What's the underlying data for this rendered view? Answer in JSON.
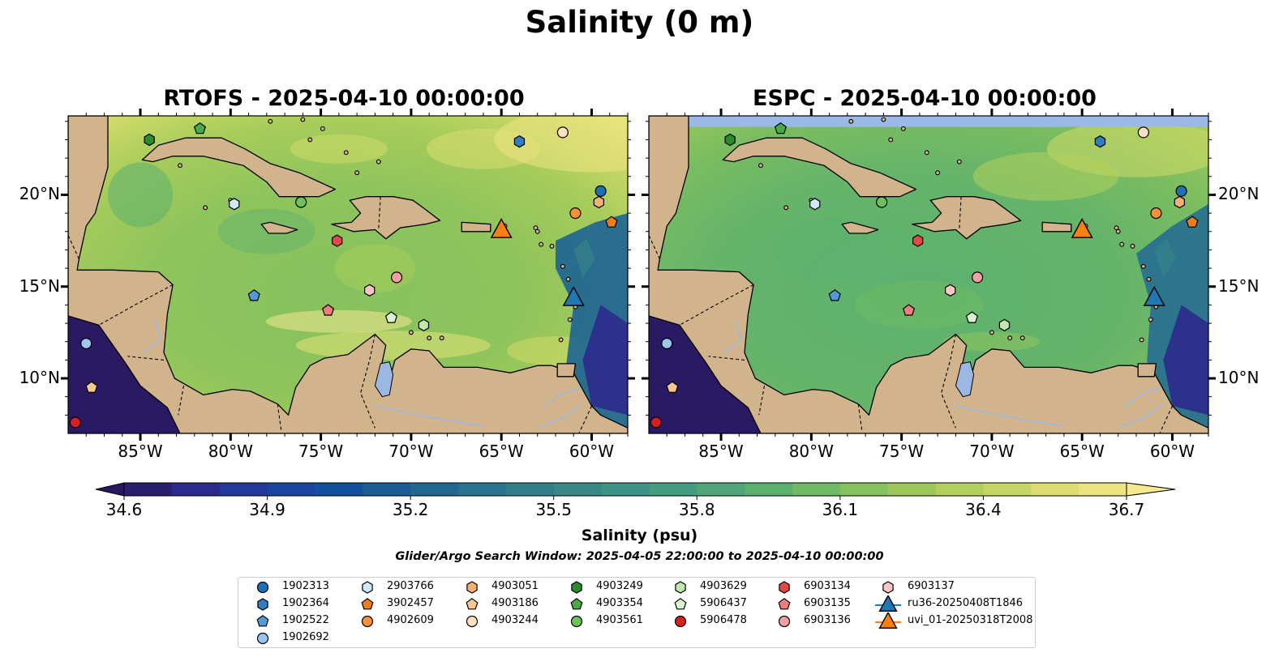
{
  "title": "Salinity (0 m)",
  "panels": [
    {
      "id": "rtofs",
      "title": "RTOFS - 2025-04-10 00:00:00",
      "ocean_style": "rtofs"
    },
    {
      "id": "espc",
      "title": "ESPC - 2025-04-10 00:00:00",
      "ocean_style": "espc"
    }
  ],
  "map_extent": {
    "lon_min": -89,
    "lon_max": -58,
    "lat_min": 7,
    "lat_max": 24.3
  },
  "lon_ticks": [
    {
      "value": -85,
      "label": "85°W"
    },
    {
      "value": -80,
      "label": "80°W"
    },
    {
      "value": -75,
      "label": "75°W"
    },
    {
      "value": -70,
      "label": "70°W"
    },
    {
      "value": -65,
      "label": "65°W"
    },
    {
      "value": -60,
      "label": "60°W"
    }
  ],
  "lat_ticks": [
    {
      "value": 20,
      "label": "20°N"
    },
    {
      "value": 15,
      "label": "15°N"
    },
    {
      "value": 10,
      "label": "10°N"
    }
  ],
  "colorbar": {
    "label": "Salinity (psu)",
    "min": 34.6,
    "max": 36.7,
    "step": 0.1,
    "extend": "both",
    "colormap": "haline",
    "ticks": [
      "34.6",
      "34.9",
      "35.2",
      "35.5",
      "35.8",
      "36.1",
      "36.4",
      "36.7"
    ]
  },
  "search_window": "Glider/Argo Search Window: 2025-04-05 22:00:00 to 2025-04-10 00:00:00",
  "colors": {
    "land": "#d2b48c",
    "lakes": "#9ab8e2",
    "gap": "#9ab8e8",
    "pacific": "#2a1a64"
  },
  "argo_floats": [
    {
      "id": "1902313",
      "marker": "circle",
      "color": "#1f6fb4",
      "lon": -59.5,
      "lat": 20.2
    },
    {
      "id": "1902364",
      "marker": "hexagon",
      "color": "#2f7ec0",
      "lon": -64.0,
      "lat": 22.9
    },
    {
      "id": "1902522",
      "marker": "pentagon",
      "color": "#5598d8",
      "lon": -78.7,
      "lat": 14.5
    },
    {
      "id": "1902692",
      "marker": "circle",
      "color": "#9dc6ec",
      "lon": -88.0,
      "lat": 11.9
    },
    {
      "id": "2903766",
      "marker": "hexagon",
      "color": "#cfe9f8",
      "lon": -79.8,
      "lat": 19.5
    },
    {
      "id": "3902457",
      "marker": "pentagon",
      "color": "#ee7d1c",
      "lon": -58.9,
      "lat": 18.5
    },
    {
      "id": "4902609",
      "marker": "circle",
      "color": "#f5913a",
      "lon": -60.9,
      "lat": 19.0
    },
    {
      "id": "4903051",
      "marker": "hexagon",
      "color": "#f8b06e",
      "lon": -59.6,
      "lat": 19.6
    },
    {
      "id": "4903186",
      "marker": "pentagon",
      "color": "#f9c890",
      "lon": -87.7,
      "lat": 9.5
    },
    {
      "id": "4903244",
      "marker": "circle",
      "color": "#fde0c1",
      "lon": -61.6,
      "lat": 23.4
    },
    {
      "id": "4903249",
      "marker": "hexagon",
      "color": "#2a8a2e",
      "lon": -84.5,
      "lat": 23.0
    },
    {
      "id": "4903354",
      "marker": "pentagon",
      "color": "#4aab44",
      "lon": -81.7,
      "lat": 23.6
    },
    {
      "id": "4903561",
      "marker": "circle",
      "color": "#6cc25a",
      "lon": -76.1,
      "lat": 19.6
    },
    {
      "id": "4903629",
      "marker": "hexagon",
      "color": "#bee8ae",
      "lon": -69.3,
      "lat": 12.9
    },
    {
      "id": "5906437",
      "marker": "pentagon",
      "color": "#d9f3cc",
      "lon": -71.1,
      "lat": 13.3
    },
    {
      "id": "5906478",
      "marker": "circle",
      "color": "#d32020",
      "lon": -88.6,
      "lat": 7.6
    },
    {
      "id": "6903134",
      "marker": "hexagon",
      "color": "#e24a4a",
      "lon": -74.1,
      "lat": 17.5
    },
    {
      "id": "6903135",
      "marker": "pentagon",
      "color": "#f07d7d",
      "lon": -74.6,
      "lat": 13.7
    },
    {
      "id": "6903136",
      "marker": "circle",
      "color": "#f5a0a0",
      "lon": -70.8,
      "lat": 15.5
    },
    {
      "id": "6903137",
      "marker": "hexagon",
      "color": "#fac6c6",
      "lon": -72.3,
      "lat": 14.8
    }
  ],
  "gliders": [
    {
      "id": "ru36-20250408T1846",
      "color": "#1f77b4",
      "lon": -61.0,
      "lat": 14.4
    },
    {
      "id": "uvi_01-20250318T2008",
      "color": "#ff7f0e",
      "lon": -65.0,
      "lat": 18.1
    }
  ],
  "legend_columns": [
    [
      "1902313",
      "1902364",
      "1902522",
      "1902692"
    ],
    [
      "2903766",
      "3902457",
      "4902609"
    ],
    [
      "4903051",
      "4903186",
      "4903244"
    ],
    [
      "4903249",
      "4903354",
      "4903561"
    ],
    [
      "4903629",
      "5906437",
      "5906478"
    ],
    [
      "6903134",
      "6903135",
      "6903136"
    ],
    [
      "6903137",
      "ru36-20250408T1846",
      "uvi_01-20250318T2008"
    ]
  ]
}
